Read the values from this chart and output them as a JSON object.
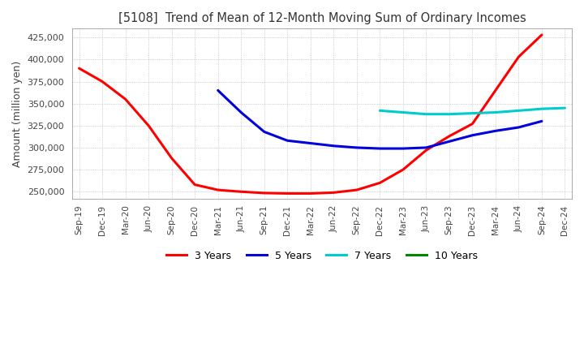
{
  "title": "[5108]  Trend of Mean of 12-Month Moving Sum of Ordinary Incomes",
  "ylabel": "Amount (million yen)",
  "ylim": [
    242000,
    435000
  ],
  "yticks": [
    250000,
    275000,
    300000,
    325000,
    350000,
    375000,
    400000,
    425000
  ],
  "background_color": "#ffffff",
  "plot_bg_color": "#ffffff",
  "grid_color": "#aaaaaa",
  "x_labels": [
    "Sep-19",
    "Dec-19",
    "Mar-20",
    "Jun-20",
    "Sep-20",
    "Dec-20",
    "Mar-21",
    "Jun-21",
    "Sep-21",
    "Dec-21",
    "Mar-22",
    "Jun-22",
    "Sep-22",
    "Dec-22",
    "Mar-23",
    "Jun-23",
    "Sep-23",
    "Dec-23",
    "Mar-24",
    "Jun-24",
    "Sep-24",
    "Dec-24"
  ],
  "series": {
    "3 Years": {
      "color": "#ff0000",
      "data": [
        390000,
        375000,
        355000,
        325000,
        288000,
        258000,
        252000,
        250000,
        248500,
        248000,
        248000,
        249000,
        252000,
        260000,
        275000,
        297000,
        313000,
        327000,
        365000,
        403000,
        428000,
        null
      ]
    },
    "5 Years": {
      "color": "#0000dd",
      "data": [
        null,
        null,
        null,
        null,
        null,
        null,
        365000,
        340000,
        318000,
        308000,
        305000,
        302000,
        300000,
        299000,
        299000,
        300000,
        307000,
        314000,
        319000,
        323000,
        330000,
        null
      ]
    },
    "7 Years": {
      "color": "#00cccc",
      "data": [
        null,
        null,
        null,
        null,
        null,
        null,
        null,
        null,
        null,
        null,
        null,
        null,
        null,
        342000,
        340000,
        338000,
        338000,
        339000,
        340000,
        342000,
        344000,
        345000
      ]
    },
    "10 Years": {
      "color": "#008800",
      "data": [
        null,
        null,
        null,
        null,
        null,
        null,
        null,
        null,
        null,
        null,
        null,
        null,
        null,
        null,
        null,
        null,
        null,
        null,
        null,
        null,
        null,
        null
      ]
    }
  }
}
